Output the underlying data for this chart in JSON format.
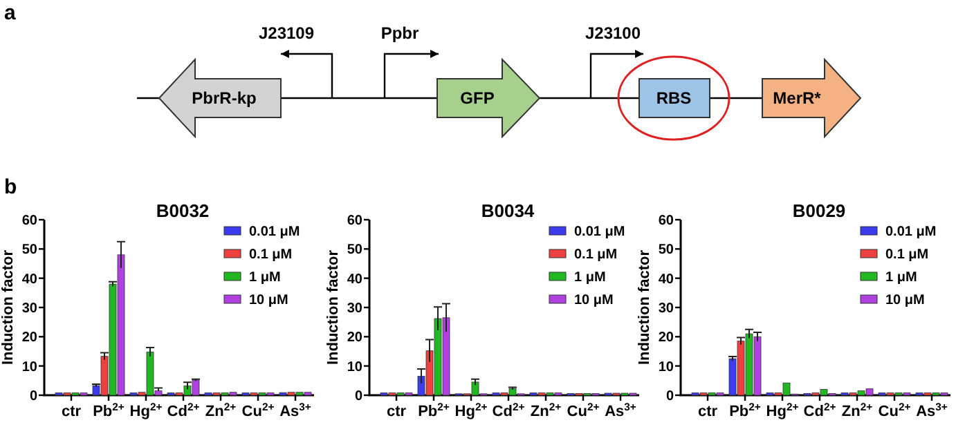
{
  "chart_data": [
    {
      "type": "other",
      "annotations": [
        "a",
        "J23109",
        "Ppbr",
        "J23100",
        "PbrR-kp",
        "GFP",
        "RBS",
        "MerR*"
      ]
    },
    {
      "type": "bar",
      "title": "B0032",
      "ylabel": "Induction factor",
      "annotations": [
        "b"
      ],
      "categories": [
        "ctr",
        "Pb$^{2+}$",
        "Hg$^{2+}$",
        "Cd$^{2+}$",
        "Zn$^{2+}$",
        "Cu$^{2+}$",
        "As$^{3+}$"
      ],
      "ylim": [
        0,
        60
      ],
      "yticks": [
        0,
        10,
        20,
        30,
        40,
        50,
        60
      ],
      "legend": "top right",
      "series": [
        {
          "name": "0.01 μM",
          "color": "#3b3bef",
          "values": [
            0.8,
            3.3,
            0.8,
            0.8,
            0.8,
            0.8,
            0.9
          ],
          "errors": [
            null,
            0.5,
            null,
            null,
            null,
            null,
            null
          ]
        },
        {
          "name": "0.1 μM",
          "color": "#ef4040",
          "values": [
            0.8,
            13.3,
            1,
            0.8,
            0.8,
            0.8,
            1
          ],
          "errors": [
            null,
            1.2,
            null,
            null,
            null,
            null,
            null
          ]
        },
        {
          "name": "1 μM",
          "color": "#22b822",
          "values": [
            0.8,
            38,
            14.8,
            3.2,
            0.8,
            0.8,
            1
          ],
          "errors": [
            null,
            0.8,
            1.5,
            1.2,
            null,
            null,
            null
          ]
        },
        {
          "name": "10 μM",
          "color": "#b040e0",
          "values": [
            0.8,
            48,
            1.5,
            5.2,
            1,
            0.8,
            1
          ],
          "errors": [
            null,
            4.5,
            [
              1.5,
              2.5
            ],
            0.3,
            null,
            null,
            null
          ]
        }
      ]
    },
    {
      "type": "bar",
      "title": "B0034",
      "ylabel": "Induction factor",
      "categories": [
        "ctr",
        "Pb$^{2+}$",
        "Hg$^{2+}$",
        "Cd$^{2+}$",
        "Zn$^{2+}$",
        "Cu$^{2+}$",
        "As$^{3+}$"
      ],
      "ylim": [
        0,
        60
      ],
      "yticks": [
        0,
        10,
        20,
        30,
        40,
        50,
        60
      ],
      "legend": "top right",
      "series": [
        {
          "name": "0.01 μM",
          "color": "#3b3bef",
          "values": [
            0.8,
            6.5,
            0.5,
            0.8,
            0.8,
            0.6,
            0.7
          ],
          "errors": [
            null,
            2.5,
            null,
            null,
            null,
            null,
            null
          ]
        },
        {
          "name": "0.1 μM",
          "color": "#ef4040",
          "values": [
            0.8,
            15.2,
            0.5,
            0.8,
            0.8,
            0.6,
            0.7
          ],
          "errors": [
            null,
            3.8,
            null,
            null,
            null,
            null,
            null
          ]
        },
        {
          "name": "1 μM",
          "color": "#22b822",
          "values": [
            0.8,
            26.2,
            4.5,
            2.3,
            0.8,
            0.6,
            0.7
          ],
          "errors": [
            null,
            4,
            1,
            0.4,
            null,
            null,
            null
          ]
        },
        {
          "name": "10 μM",
          "color": "#b040e0",
          "values": [
            0.8,
            26.5,
            0.5,
            0.5,
            0.8,
            0.6,
            0.7
          ],
          "errors": [
            null,
            4.8,
            null,
            null,
            null,
            null,
            null
          ]
        }
      ]
    },
    {
      "type": "bar",
      "title": "B0029",
      "ylabel": "Induction factor",
      "categories": [
        "ctr",
        "Pb$^{2+}$",
        "Hg$^{2+}$",
        "Cd$^{2+}$",
        "Zn$^{2+}$",
        "Cu$^{2+}$",
        "As$^{3+}$"
      ],
      "ylim": [
        0,
        60
      ],
      "yticks": [
        0,
        10,
        20,
        30,
        40,
        50,
        60
      ],
      "legend": "top right",
      "series": [
        {
          "name": "0.01 μM",
          "color": "#3b3bef",
          "values": [
            0.8,
            12.5,
            0.8,
            0.6,
            0.8,
            0.8,
            0.8
          ],
          "errors": [
            null,
            0.7,
            null,
            null,
            null,
            null,
            null
          ]
        },
        {
          "name": "0.1 μM",
          "color": "#ef4040",
          "values": [
            0.8,
            18.5,
            0.8,
            0.8,
            0.8,
            0.8,
            0.8
          ],
          "errors": [
            null,
            1.2,
            null,
            null,
            null,
            null,
            null
          ]
        },
        {
          "name": "1 μM",
          "color": "#22b822",
          "values": [
            0.8,
            21,
            4.2,
            2,
            1.5,
            0.8,
            0.8
          ],
          "errors": [
            null,
            1.5,
            null,
            null,
            null,
            null,
            null
          ]
        },
        {
          "name": "10 μM",
          "color": "#b040e0",
          "values": [
            0.8,
            20,
            0.4,
            0.6,
            2.2,
            0.8,
            0.8
          ],
          "errors": [
            null,
            1.5,
            null,
            null,
            null,
            null,
            null
          ]
        }
      ]
    }
  ]
}
